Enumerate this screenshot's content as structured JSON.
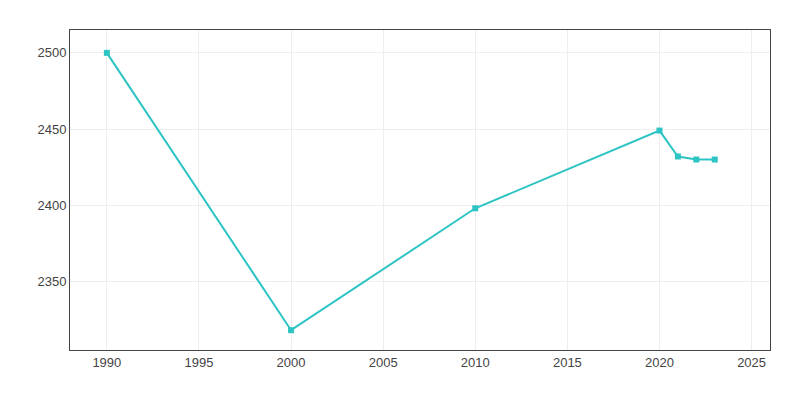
{
  "chart_data": {
    "type": "line",
    "x": [
      1990,
      2000,
      2010,
      2020,
      2021,
      2022,
      2023
    ],
    "values": [
      2500,
      2318,
      2398,
      2449,
      2432,
      2430,
      2430
    ],
    "color": "#2ec4c4",
    "marker": "square",
    "xlim": [
      1988,
      2026
    ],
    "ylim": [
      2305,
      2515
    ],
    "xticks": [
      1990,
      1995,
      2000,
      2005,
      2010,
      2015,
      2020,
      2025
    ],
    "yticks": [
      2350,
      2400,
      2450,
      2500
    ],
    "grid": true
  }
}
